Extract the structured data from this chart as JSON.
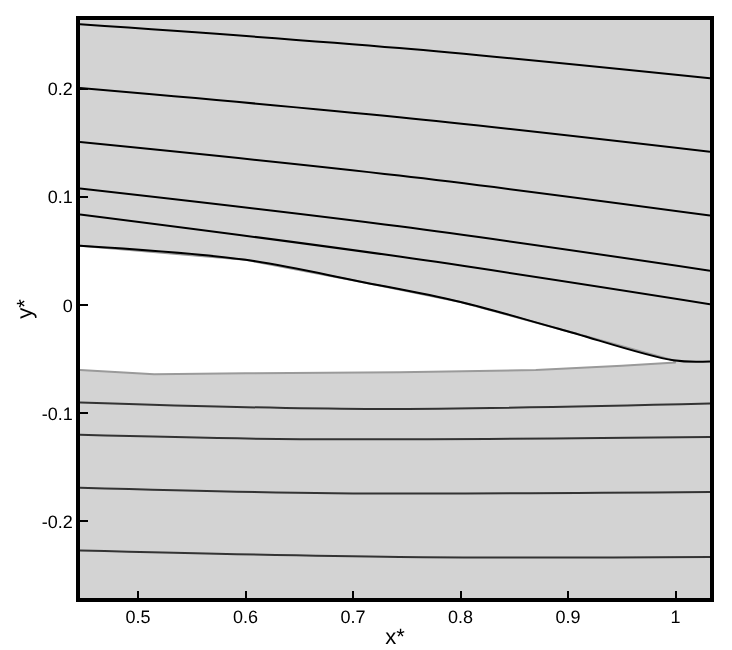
{
  "chart_data": {
    "type": "line",
    "xlabel": "x*",
    "ylabel": "y*",
    "xlim": [
      0.446,
      1.032
    ],
    "ylim": [
      -0.271,
      0.264
    ],
    "xticks": [
      0.5,
      0.6,
      0.7,
      0.8,
      0.9,
      1
    ],
    "yticks": [
      -0.2,
      -0.1,
      0,
      0.1,
      0.2
    ],
    "grid": false,
    "marker": "none",
    "line_style": "solid",
    "series": [
      {
        "type": "area",
        "color": "#ffffff",
        "x": [
          0.446,
          0.6,
          0.706,
          0.8,
          0.892,
          0.998,
          1.0,
          0.95,
          0.87,
          0.743,
          0.6,
          0.515,
          0.446
        ],
        "values": [
          0.055,
          0.042,
          0.022,
          0.003,
          -0.022,
          -0.051,
          -0.053,
          -0.056,
          -0.06,
          -0.062,
          -0.063,
          -0.064,
          -0.06
        ]
      },
      {
        "color": "#000000",
        "x": [
          0.446,
          0.6,
          0.706,
          0.8,
          0.892,
          0.998,
          1.032
        ],
        "values": [
          0.055,
          0.042,
          0.022,
          0.003,
          -0.022,
          -0.051,
          -0.052
        ]
      },
      {
        "color": "#000000",
        "x": [
          0.446,
          0.743,
          1.032
        ],
        "values": [
          0.26,
          0.238,
          0.21
        ]
      },
      {
        "color": "#000000",
        "x": [
          0.446,
          0.743,
          1.032
        ],
        "values": [
          0.201,
          0.174,
          0.142
        ]
      },
      {
        "color": "#000000",
        "x": [
          0.446,
          0.743,
          1.032
        ],
        "values": [
          0.151,
          0.12,
          0.083
        ]
      },
      {
        "color": "#000000",
        "x": [
          0.446,
          0.743,
          1.032
        ],
        "values": [
          0.108,
          0.073,
          0.032
        ]
      },
      {
        "color": "#000000",
        "x": [
          0.446,
          0.743,
          1.032
        ],
        "values": [
          0.084,
          0.045,
          0.001
        ]
      },
      {
        "color": "#333333",
        "x": [
          0.446,
          0.712,
          1.032
        ],
        "values": [
          -0.09,
          -0.096,
          -0.091
        ]
      },
      {
        "color": "#333333",
        "x": [
          0.446,
          0.651,
          1.032
        ],
        "values": [
          -0.12,
          -0.124,
          -0.122
        ]
      },
      {
        "color": "#333333",
        "x": [
          0.446,
          0.682,
          1.032
        ],
        "values": [
          -0.169,
          -0.174,
          -0.173
        ]
      },
      {
        "color": "#333333",
        "x": [
          0.446,
          0.743,
          1.032
        ],
        "values": [
          -0.227,
          -0.233,
          -0.233
        ]
      }
    ]
  }
}
